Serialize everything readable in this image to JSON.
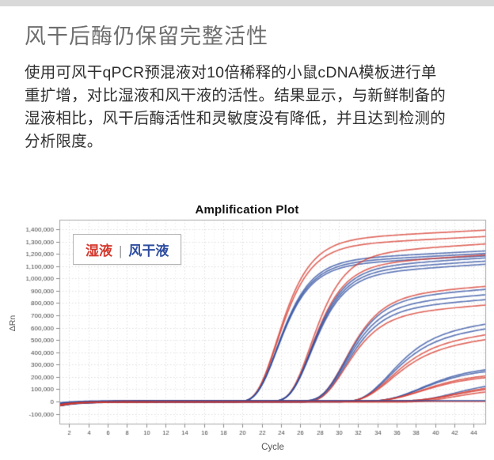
{
  "page": {
    "top_strip_color": "#d9d9d9"
  },
  "header": {
    "title": "风干后酶仍保留完整活性"
  },
  "paragraph": {
    "lines": [
      "使用可风干qPCR预混液对10倍稀释的小鼠cDNA模板进行单",
      "重扩增，对比湿液和风干液的活性。结果显示，与新鲜制备的",
      "湿液相比，风干后酶活性和灵敏度没有降低，并且达到检测的",
      "分析限度。"
    ]
  },
  "chart_data": {
    "type": "line",
    "title": "Amplification Plot",
    "xlabel": "Cycle",
    "ylabel": "ΔRn",
    "xlim": [
      1,
      45.3
    ],
    "ylim": [
      -186000,
      1477000
    ],
    "x_ticks": [
      2,
      4,
      6,
      8,
      10,
      12,
      14,
      16,
      18,
      20,
      22,
      24,
      26,
      28,
      30,
      32,
      34,
      36,
      38,
      40,
      42,
      44
    ],
    "x_tick_labels": [
      "2",
      "4",
      "6",
      "8",
      "10",
      "12",
      "14",
      "16",
      "18",
      "20",
      "22",
      "24",
      "26",
      "28",
      "30",
      "32",
      "34",
      "36",
      "38",
      "40",
      "42",
      "44"
    ],
    "y_ticks": [
      -100000,
      0,
      100000,
      200000,
      300000,
      400000,
      500000,
      600000,
      700000,
      800000,
      900000,
      1000000,
      1100000,
      1200000,
      1300000,
      1400000
    ],
    "y_tick_labels": [
      "-100,000",
      "0",
      "100,000",
      "200,000",
      "300,000",
      "400,000",
      "500,000",
      "600,000",
      "700,000",
      "800,000",
      "900,000",
      "1,000,000",
      "1,100,000",
      "1,200,000",
      "1,300,000",
      "1,400,000"
    ],
    "grid": "dotted",
    "legend": {
      "position": "top-left",
      "items": [
        {
          "label": "湿液",
          "color": "#d5392e"
        },
        {
          "label": "风干液",
          "color": "#2e4da0"
        }
      ]
    },
    "curve_model": "gompertz: y = plateau*exp(-exp(-rate*(cycle-midpoint))) + drift*(cycle-midpoint) after midpoint, plus early-cycle baseline dip",
    "groups": [
      {
        "name": "dilution-1",
        "takeoff_cycle": 20,
        "midpoint": 23.5,
        "rate": 0.5,
        "drift": 4000,
        "curves": [
          {
            "series": "湿液",
            "plateau": 1310000,
            "value_at_cycle_45": 1396000
          },
          {
            "series": "湿液",
            "plateau": 1258000,
            "value_at_cycle_45": 1344000
          },
          {
            "series": "风干液",
            "plateau": 1140000,
            "value_at_cycle_45": 1226000
          },
          {
            "series": "风干液",
            "plateau": 1118000,
            "value_at_cycle_45": 1204000
          },
          {
            "series": "风干液",
            "plateau": 1098000,
            "value_at_cycle_45": 1184000
          }
        ]
      },
      {
        "name": "dilution-2",
        "takeoff_cycle": 23,
        "midpoint": 27.0,
        "rate": 0.5,
        "drift": 5000,
        "curves": [
          {
            "series": "湿液",
            "plateau": 1190000,
            "value_at_cycle_45": 1280000
          },
          {
            "series": "湿液",
            "plateau": 1100000,
            "value_at_cycle_45": 1190000
          },
          {
            "series": "风干液",
            "plateau": 1075000,
            "value_at_cycle_45": 1165000
          },
          {
            "series": "风干液",
            "plateau": 1048000,
            "value_at_cycle_45": 1138000
          },
          {
            "series": "风干液",
            "plateau": 1022000,
            "value_at_cycle_45": 1112000
          }
        ]
      },
      {
        "name": "dilution-3",
        "takeoff_cycle": 26.5,
        "midpoint": 30.5,
        "rate": 0.46,
        "drift": 6000,
        "curves": [
          {
            "series": "湿液",
            "plateau": 845000,
            "value_at_cycle_45": 930000
          },
          {
            "series": "风干液",
            "plateau": 820000,
            "value_at_cycle_45": 905000
          },
          {
            "series": "风干液",
            "plateau": 775000,
            "value_at_cycle_45": 860000
          },
          {
            "series": "风干液",
            "plateau": 745000,
            "value_at_cycle_45": 830000
          },
          {
            "series": "湿液",
            "plateau": 700000,
            "value_at_cycle_45": 785000
          }
        ]
      },
      {
        "name": "dilution-4",
        "takeoff_cycle": 30,
        "midpoint": 35.0,
        "rate": 0.4,
        "drift": 9000,
        "curves": [
          {
            "series": "风干液",
            "plateau": 550000,
            "value_at_cycle_45": 628000
          },
          {
            "series": "风干液",
            "plateau": 510000,
            "value_at_cycle_45": 589000
          },
          {
            "series": "湿液",
            "plateau": 460000,
            "value_at_cycle_45": 540000
          },
          {
            "series": "湿液",
            "plateau": 420000,
            "value_at_cycle_45": 500000
          }
        ]
      },
      {
        "name": "dilution-5",
        "takeoff_cycle": 34,
        "midpoint": 38.5,
        "rate": 0.3,
        "drift": 0,
        "curves": [
          {
            "series": "风干液",
            "plateau": 294000,
            "value_at_cycle_45": 255000
          },
          {
            "series": "风干液",
            "plateau": 276000,
            "value_at_cycle_45": 239000
          },
          {
            "series": "湿液",
            "plateau": 235000,
            "value_at_cycle_45": 204000
          },
          {
            "series": "湿液",
            "plateau": 218000,
            "value_at_cycle_45": 189000
          }
        ]
      },
      {
        "name": "dilution-6",
        "takeoff_cycle": 37.5,
        "midpoint": 42.0,
        "rate": 0.3,
        "drift": 0,
        "curves": [
          {
            "series": "风干液",
            "plateau": 175000,
            "value_at_cycle_45": 117000
          },
          {
            "series": "湿液",
            "plateau": 150000,
            "value_at_cycle_45": 100000
          },
          {
            "series": "湿液",
            "plateau": 135000,
            "value_at_cycle_45": 90000
          },
          {
            "series": "湿液",
            "plateau": 120000,
            "value_at_cycle_45": 80000
          }
        ]
      }
    ],
    "baseline": {
      "start_dip_range": [
        -38000,
        -16000
      ],
      "flat_controls": [
        {
          "series": "湿液",
          "offset": 1000
        },
        {
          "series": "风干液",
          "offset": 7000
        }
      ]
    },
    "style": {
      "line_alpha": 0.75,
      "grid_color": "#dedede",
      "frame_color": "#a8a8a8",
      "tick_text_color": "#444444"
    }
  }
}
